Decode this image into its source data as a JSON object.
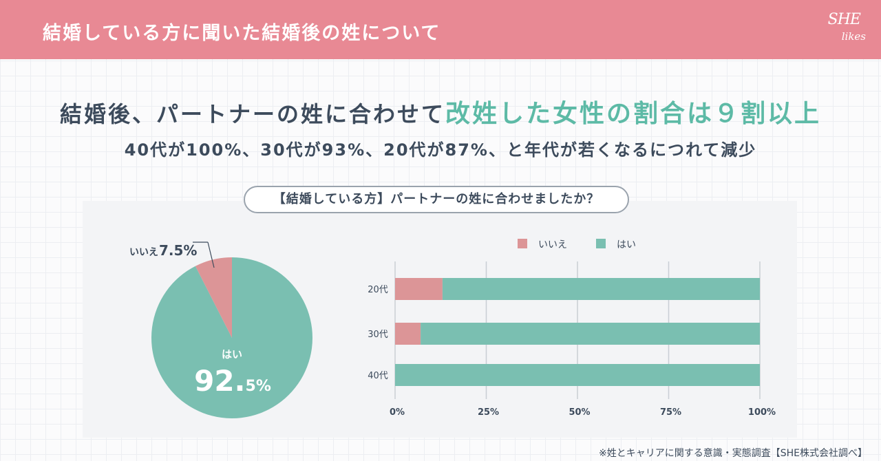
{
  "header": {
    "title": "結婚している方に聞いた結婚後の姓について",
    "logo_line1": "SHE",
    "logo_line2": "likes"
  },
  "headline": {
    "prefix": "結婚後、パートナーの姓に合わせて",
    "highlight": "改姓した女性の割合は９割以上"
  },
  "subline": "40代が100%、30代が93%、20代が87%、と年代が若くなるにつれて減少",
  "question": "【結婚している方】パートナーの姓に合わせましたか？",
  "colors": {
    "yes": "#7abfb1",
    "no": "#dc9597",
    "header": "#e88994",
    "accent": "#5dbaa6"
  },
  "chart_data": [
    {
      "type": "pie",
      "labels": [
        "はい",
        "いいえ"
      ],
      "values": [
        92.5,
        7.5
      ],
      "yes_label": "はい",
      "yes_value": "92.",
      "yes_value_small": "5%",
      "no_label": "いいえ",
      "no_value": "7.5%"
    },
    {
      "type": "bar",
      "orientation": "horizontal",
      "stacked": true,
      "categories": [
        "20代",
        "30代",
        "40代"
      ],
      "series": [
        {
          "name": "いいえ",
          "values": [
            13,
            7,
            0
          ]
        },
        {
          "name": "はい",
          "values": [
            87,
            93,
            100
          ]
        }
      ],
      "xlim": [
        0,
        100
      ],
      "x_ticks": [
        "0%",
        "25%",
        "50%",
        "75%",
        "100%"
      ],
      "legend": [
        "いいえ",
        "はい"
      ],
      "legend_position": "top"
    }
  ],
  "footnote": "※姓とキャリアに関する意識・実態調査【SHE株式会社調べ】"
}
